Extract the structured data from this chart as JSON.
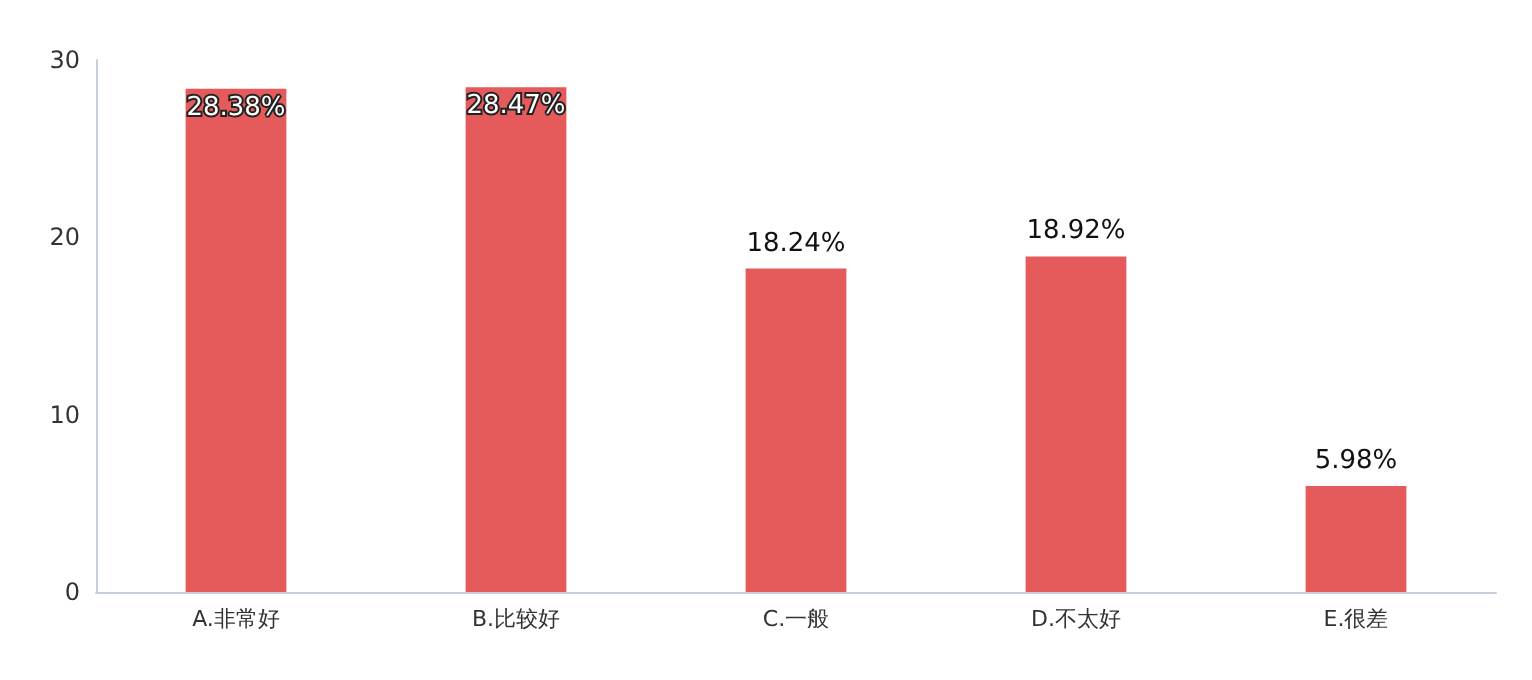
{
  "chart_data": {
    "type": "bar",
    "categories": [
      "A.非常好",
      "B.比较好",
      "C.一般",
      "D.不太好",
      "E.很差"
    ],
    "values": [
      28.38,
      28.47,
      18.24,
      18.92,
      5.98
    ],
    "value_labels": [
      "28.38%",
      "28.47%",
      "18.24%",
      "18.92%",
      "5.98%"
    ],
    "color": "#e55b5b",
    "ylim": [
      0,
      30
    ],
    "yticks": [
      0,
      10,
      20,
      30
    ],
    "grid": false
  }
}
